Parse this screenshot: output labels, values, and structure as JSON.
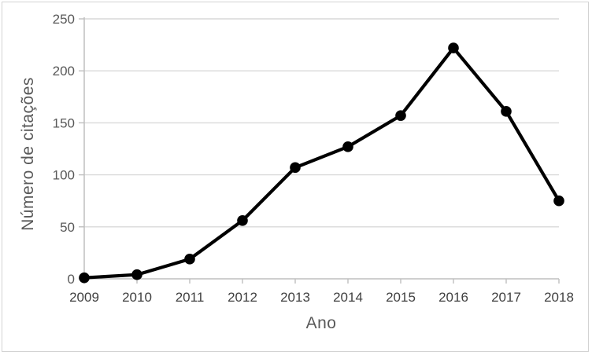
{
  "chart_data": {
    "type": "line",
    "categories": [
      "2009",
      "2010",
      "2011",
      "2012",
      "2013",
      "2014",
      "2015",
      "2016",
      "2017",
      "2018"
    ],
    "series": [
      {
        "name": "citations",
        "values": [
          1,
          4,
          19,
          56,
          107,
          127,
          157,
          222,
          161,
          75
        ]
      }
    ],
    "title": "",
    "xlabel": "Ano",
    "ylabel": "Número de citações",
    "ylim": [
      0,
      250
    ],
    "yticks": [
      0,
      50,
      100,
      150,
      200,
      250
    ],
    "grid": true,
    "legend": false,
    "colors": {
      "line": "#000000",
      "marker": "#000000",
      "gridline": "#d9d9d9",
      "axis_line": "#bfbfbf",
      "y_tick_label": "#595959",
      "x_tick_label": "#404040",
      "axis_title": "#595959",
      "border": "#d3d3d3",
      "background": "#ffffff"
    }
  }
}
